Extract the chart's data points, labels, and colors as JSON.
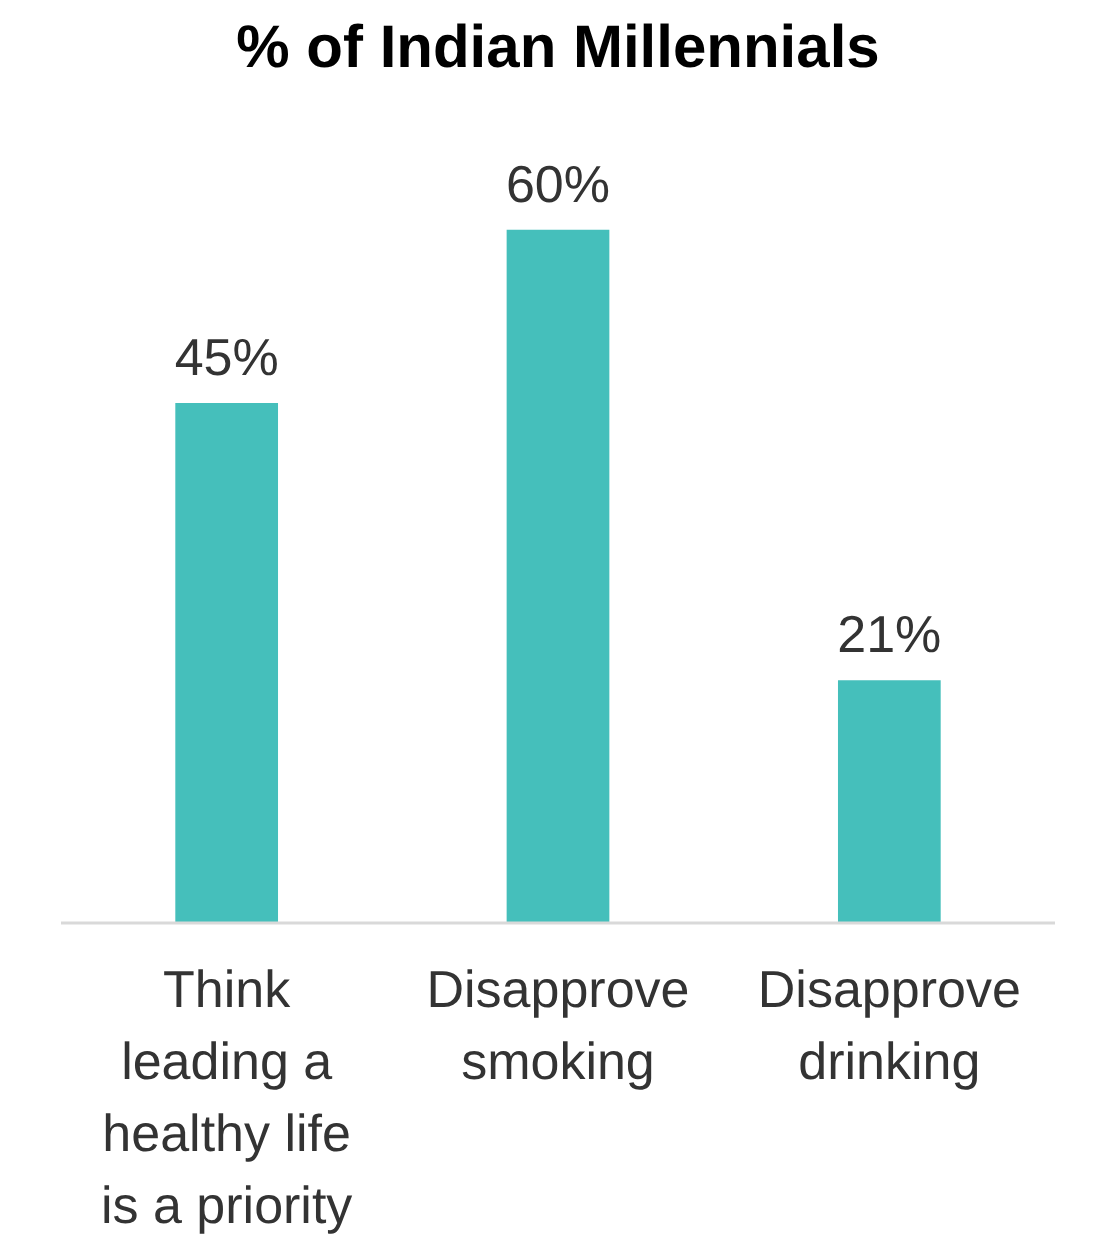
{
  "chart_data": {
    "type": "bar",
    "title": "% of Indian Millennials",
    "categories": [
      "Think\nleading a\nhealthy life\nis a priority",
      "Disapprove\nsmoking",
      "Disapprove\ndrinking"
    ],
    "values": [
      45,
      60,
      21
    ],
    "value_labels": [
      "45%",
      "60%",
      "21%"
    ],
    "color": "#45bfbb"
  }
}
